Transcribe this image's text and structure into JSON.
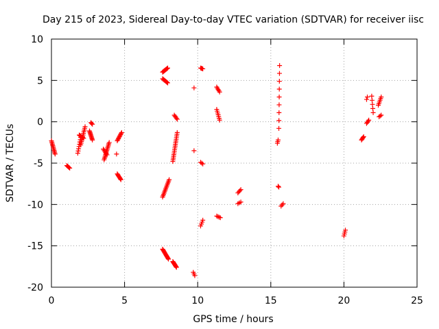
{
  "chart_data": {
    "type": "scatter",
    "title": "Day 215 of 2023, Sidereal Day-to-day VTEC variation (SDTVAR) for receiver iisc",
    "xlabel": "GPS time / hours",
    "ylabel": "SDTVAR / TECUs",
    "xlim": [
      0,
      25
    ],
    "ylim": [
      -20,
      10
    ],
    "xticks": [
      0,
      5,
      10,
      15,
      20,
      25
    ],
    "yticks": [
      -20,
      -15,
      -10,
      -5,
      0,
      5,
      10
    ],
    "grid": true,
    "marker": "+",
    "color": "#ff0000",
    "segments": [
      {
        "x0": 0.0,
        "x1": 0.25,
        "y0": -2.3,
        "y1": -3.9,
        "n": 12
      },
      {
        "x0": 1.05,
        "x1": 1.25,
        "y0": -5.3,
        "y1": -5.6,
        "n": 5
      },
      {
        "x0": 1.8,
        "x1": 2.0,
        "y0": -3.8,
        "y1": -1.9,
        "n": 8
      },
      {
        "x0": 2.0,
        "x1": 2.3,
        "y0": -2.8,
        "y1": -0.6,
        "n": 12
      },
      {
        "x0": 1.9,
        "x1": 2.2,
        "y0": -1.6,
        "y1": -2.0,
        "n": 8
      },
      {
        "x0": 2.6,
        "x1": 2.8,
        "y0": -1.1,
        "y1": -2.2,
        "n": 10
      },
      {
        "x0": 2.7,
        "x1": 2.8,
        "y0": -0.1,
        "y1": -0.3,
        "n": 3
      },
      {
        "x0": 3.6,
        "x1": 3.95,
        "y0": -4.6,
        "y1": -2.5,
        "n": 14
      },
      {
        "x0": 3.55,
        "x1": 3.8,
        "y0": -3.3,
        "y1": -4.0,
        "n": 6
      },
      {
        "x0": 4.5,
        "x1": 4.8,
        "y0": -2.3,
        "y1": -1.3,
        "n": 9
      },
      {
        "x0": 4.45,
        "x1": 4.45,
        "y0": -3.9,
        "y1": -3.9,
        "n": 1
      },
      {
        "x0": 4.5,
        "x1": 4.75,
        "y0": -6.3,
        "y1": -7.0,
        "n": 8
      },
      {
        "x0": 7.6,
        "x1": 7.95,
        "y0": 6.0,
        "y1": 6.5,
        "n": 10
      },
      {
        "x0": 7.6,
        "x1": 7.95,
        "y0": 5.2,
        "y1": 4.7,
        "n": 8
      },
      {
        "x0": 7.6,
        "x1": 8.05,
        "y0": -9.1,
        "y1": -7.0,
        "n": 14
      },
      {
        "x0": 7.6,
        "x1": 8.0,
        "y0": -15.4,
        "y1": -16.6,
        "n": 14
      },
      {
        "x0": 8.3,
        "x1": 8.55,
        "y0": -16.9,
        "y1": -17.6,
        "n": 10
      },
      {
        "x0": 8.3,
        "x1": 8.6,
        "y0": -4.8,
        "y1": -1.3,
        "n": 18
      },
      {
        "x0": 8.4,
        "x1": 8.6,
        "y0": 0.8,
        "y1": 0.3,
        "n": 5
      },
      {
        "x0": 9.75,
        "x1": 9.75,
        "y0": 4.1,
        "y1": 4.1,
        "n": 1
      },
      {
        "x0": 9.75,
        "x1": 9.75,
        "y0": -3.5,
        "y1": -3.5,
        "n": 1
      },
      {
        "x0": 9.7,
        "x1": 9.8,
        "y0": -18.2,
        "y1": -18.6,
        "n": 3
      },
      {
        "x0": 10.2,
        "x1": 10.35,
        "y0": 6.5,
        "y1": 6.4,
        "n": 4
      },
      {
        "x0": 10.2,
        "x1": 10.35,
        "y0": -4.9,
        "y1": -5.1,
        "n": 3
      },
      {
        "x0": 10.2,
        "x1": 10.35,
        "y0": -12.6,
        "y1": -11.9,
        "n": 4
      },
      {
        "x0": 11.3,
        "x1": 11.5,
        "y0": 4.2,
        "y1": 3.6,
        "n": 5
      },
      {
        "x0": 11.3,
        "x1": 11.5,
        "y0": 1.5,
        "y1": 0.2,
        "n": 7
      },
      {
        "x0": 11.3,
        "x1": 11.55,
        "y0": -11.4,
        "y1": -11.6,
        "n": 4
      },
      {
        "x0": 12.75,
        "x1": 12.95,
        "y0": -8.6,
        "y1": -8.2,
        "n": 4
      },
      {
        "x0": 12.75,
        "x1": 12.95,
        "y0": -9.9,
        "y1": -9.7,
        "n": 3
      },
      {
        "x0": 15.45,
        "x1": 15.5,
        "y0": -2.6,
        "y1": -2.2,
        "n": 3
      },
      {
        "x0": 15.55,
        "x1": 15.6,
        "y0": -0.8,
        "y1": 6.8,
        "n": 9
      },
      {
        "x0": 15.5,
        "x1": 15.55,
        "y0": -7.8,
        "y1": -7.9,
        "n": 2
      },
      {
        "x0": 15.7,
        "x1": 15.85,
        "y0": -10.2,
        "y1": -9.9,
        "n": 3
      },
      {
        "x0": 20.0,
        "x1": 20.1,
        "y0": -13.8,
        "y1": -13.1,
        "n": 4
      },
      {
        "x0": 21.2,
        "x1": 21.35,
        "y0": -2.2,
        "y1": -1.8,
        "n": 5
      },
      {
        "x0": 21.55,
        "x1": 21.7,
        "y0": -0.2,
        "y1": 0.2,
        "n": 4
      },
      {
        "x0": 21.55,
        "x1": 21.6,
        "y0": 2.7,
        "y1": 3.0,
        "n": 2
      },
      {
        "x0": 21.9,
        "x1": 22.0,
        "y0": 3.1,
        "y1": 1.1,
        "n": 5
      },
      {
        "x0": 22.35,
        "x1": 22.55,
        "y0": 2.0,
        "y1": 3.0,
        "n": 6
      },
      {
        "x0": 22.4,
        "x1": 22.55,
        "y0": 0.6,
        "y1": 0.8,
        "n": 3
      }
    ]
  }
}
